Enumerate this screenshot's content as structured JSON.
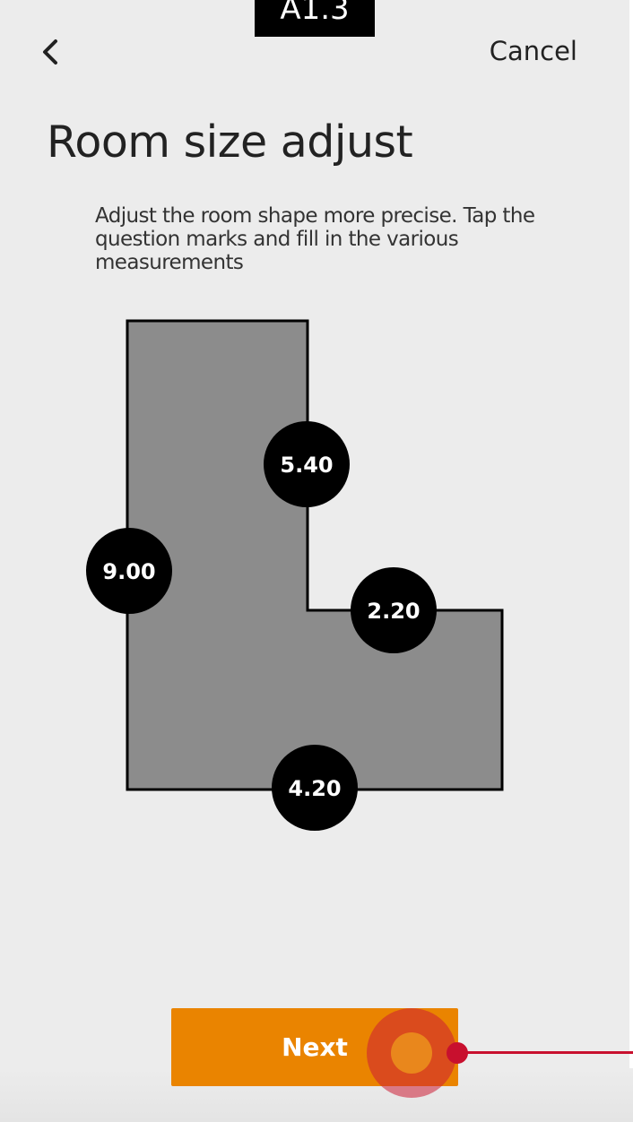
{
  "screen_label": "A1.3",
  "header": {
    "back_icon": "chevron-left-icon",
    "cancel_label": "Cancel"
  },
  "title": "Room size adjust",
  "description": "Adjust the room shape more precise. Tap the question marks and fill in the various measurements",
  "room": {
    "shape": "L-shaped",
    "fill_color": "#8c8c8c",
    "outline_color": "#000000",
    "measurements": {
      "left_wall": "9.00",
      "inner_vertical": "5.40",
      "inner_horizontal": "2.20",
      "bottom_wall": "4.20"
    }
  },
  "next_label": "Next",
  "colors": {
    "accent": "#ea8400",
    "background": "#ececec",
    "annotation": "#c8102e"
  }
}
